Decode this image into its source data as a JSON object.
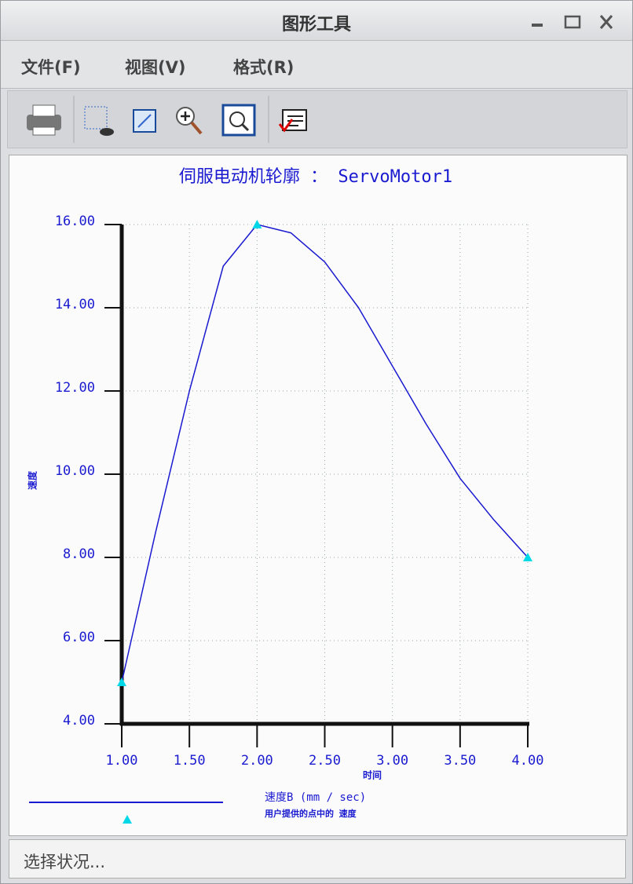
{
  "window": {
    "title": "图形工具"
  },
  "menu": [
    "文件(F)",
    "视图(V)",
    "格式(R)"
  ],
  "status": "选择状况...",
  "chart_data": {
    "type": "line",
    "title": "伺服电动机轮廓 ： ServoMotor1",
    "x_label": "时间",
    "y_label": "速度",
    "x": [
      1,
      1.25,
      1.5,
      1.75,
      2,
      2.25,
      2.5,
      2.75,
      3,
      3.25,
      3.5,
      3.75,
      4
    ],
    "series": [
      {
        "name": "速度B (mm / sec)",
        "color": "#1a1ad0",
        "values": [
          5,
          8.6,
          12.0,
          15.0,
          16.0,
          15.8,
          15.1,
          14.0,
          12.6,
          11.2,
          9.9,
          8.9,
          8.0
        ]
      },
      {
        "name": "用户提供的点中的 速度",
        "color": "#00d8e8",
        "marker": "triangle",
        "x": [
          1,
          2,
          4
        ],
        "values": [
          5,
          16,
          8
        ]
      }
    ],
    "xlim": [
      1,
      4
    ],
    "ylim": [
      4,
      16
    ],
    "xticks": [
      {
        "value": 1,
        "label": "1.00"
      },
      {
        "value": 1.5,
        "label": "1.50"
      },
      {
        "value": 2,
        "label": "2.00"
      },
      {
        "value": 2.5,
        "label": "2.50"
      },
      {
        "value": 3,
        "label": "3.00"
      },
      {
        "value": 3.5,
        "label": "3.50"
      },
      {
        "value": 4,
        "label": "4.00"
      }
    ],
    "yticks": [
      {
        "value": 4,
        "label": "4.00"
      },
      {
        "value": 6,
        "label": "6.00"
      },
      {
        "value": 8,
        "label": "8.00"
      },
      {
        "value": 10,
        "label": "10.00"
      },
      {
        "value": 12,
        "label": "12.00"
      },
      {
        "value": 14,
        "label": "14.00"
      },
      {
        "value": 16,
        "label": "16.00"
      }
    ],
    "grid": true
  }
}
